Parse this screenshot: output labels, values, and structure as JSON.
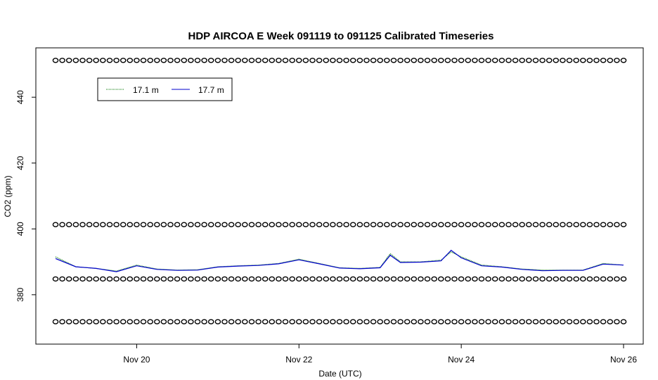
{
  "chart_data": {
    "type": "line",
    "title": "HDP AIRCOA E  Week 091119 to 091125  Calibrated Timeseries",
    "xlabel": "Date (UTC)",
    "ylabel": "CO2 (ppm)",
    "xlim": [
      "2009-11-19",
      "2009-11-26"
    ],
    "ylim": [
      365,
      455
    ],
    "x_ticks": [
      "Nov 20",
      "Nov 22",
      "Nov 24",
      "Nov 26"
    ],
    "y_ticks": [
      "380",
      "400",
      "420",
      "440"
    ],
    "grid": false,
    "legend_position": "top-left",
    "series": [
      {
        "name": "17.1 m",
        "color": "#007700",
        "style": "dotted",
        "x": [
          "2009-11-19 00:00",
          "2009-11-19 06:00",
          "2009-11-19 12:00",
          "2009-11-19 18:00",
          "2009-11-20 00:00",
          "2009-11-20 06:00",
          "2009-11-20 12:00",
          "2009-11-20 18:00",
          "2009-11-21 00:00",
          "2009-11-21 06:00",
          "2009-11-21 12:00",
          "2009-11-21 18:00",
          "2009-11-22 00:00",
          "2009-11-22 06:00",
          "2009-11-22 12:00",
          "2009-11-22 18:00",
          "2009-11-23 00:00",
          "2009-11-23 03:00",
          "2009-11-23 06:00",
          "2009-11-23 12:00",
          "2009-11-23 18:00",
          "2009-11-23 21:00",
          "2009-11-24 00:00",
          "2009-11-24 06:00",
          "2009-11-24 12:00",
          "2009-11-24 18:00",
          "2009-11-25 00:00",
          "2009-11-25 06:00",
          "2009-11-25 12:00",
          "2009-11-25 18:00",
          "2009-11-26 00:00"
        ],
        "values": [
          391.5,
          388.5,
          388.0,
          387.2,
          389.0,
          387.8,
          387.5,
          387.6,
          388.5,
          388.8,
          389.0,
          389.5,
          390.8,
          389.5,
          388.2,
          388.0,
          388.3,
          392.5,
          390.0,
          390.0,
          390.5,
          393.0,
          391.5,
          389.0,
          388.5,
          387.8,
          387.5,
          387.5,
          387.5,
          389.5,
          389.0
        ]
      },
      {
        "name": "17.7 m",
        "color": "#0000cc",
        "style": "solid",
        "x": [
          "2009-11-19 00:00",
          "2009-11-19 06:00",
          "2009-11-19 12:00",
          "2009-11-19 18:00",
          "2009-11-20 00:00",
          "2009-11-20 06:00",
          "2009-11-20 12:00",
          "2009-11-20 18:00",
          "2009-11-21 00:00",
          "2009-11-21 06:00",
          "2009-11-21 12:00",
          "2009-11-21 18:00",
          "2009-11-22 00:00",
          "2009-11-22 06:00",
          "2009-11-22 12:00",
          "2009-11-22 18:00",
          "2009-11-23 00:00",
          "2009-11-23 03:00",
          "2009-11-23 06:00",
          "2009-11-23 12:00",
          "2009-11-23 18:00",
          "2009-11-23 21:00",
          "2009-11-24 00:00",
          "2009-11-24 06:00",
          "2009-11-24 12:00",
          "2009-11-24 18:00",
          "2009-11-25 00:00",
          "2009-11-25 06:00",
          "2009-11-25 12:00",
          "2009-11-25 18:00",
          "2009-11-26 00:00"
        ],
        "values": [
          391.0,
          388.5,
          388.0,
          387.0,
          388.8,
          387.7,
          387.4,
          387.5,
          388.4,
          388.7,
          388.9,
          389.4,
          390.6,
          389.4,
          388.1,
          387.9,
          388.2,
          392.0,
          389.8,
          389.9,
          390.3,
          393.5,
          391.2,
          388.8,
          388.4,
          387.7,
          387.3,
          387.4,
          387.4,
          389.3,
          389.0
        ]
      }
    ],
    "markers": {
      "symbol": "o",
      "color": "#000000",
      "levels": [
        451.2,
        401.3,
        384.8,
        371.8
      ],
      "start": "2009-11-19 00:00",
      "end": "2009-11-26 00:00",
      "step_hours": 2
    }
  }
}
